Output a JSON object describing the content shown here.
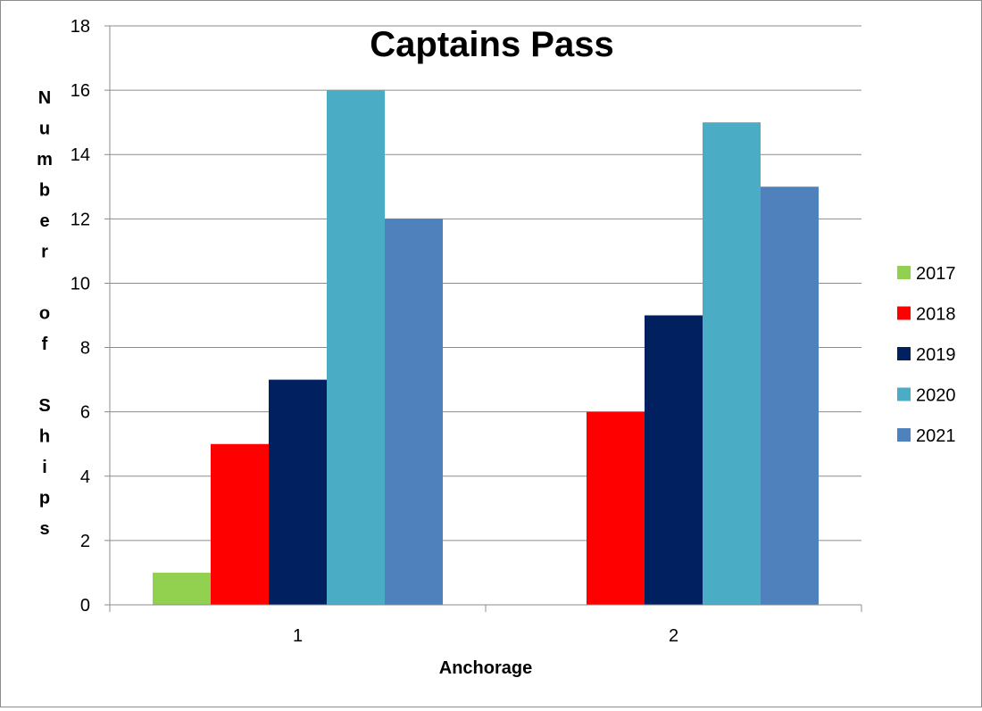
{
  "chart_data": {
    "type": "bar",
    "title": "Captains Pass",
    "xlabel": "Anchorage",
    "ylabel": "Number of Ships",
    "categories": [
      "1",
      "2"
    ],
    "series": [
      {
        "name": "2017",
        "color": "#92d050",
        "values": [
          1,
          0
        ]
      },
      {
        "name": "2018",
        "color": "#ff0000",
        "values": [
          5,
          6
        ]
      },
      {
        "name": "2019",
        "color": "#002060",
        "values": [
          7,
          9
        ]
      },
      {
        "name": "2020",
        "color": "#4bacc6",
        "values": [
          16,
          15
        ]
      },
      {
        "name": "2021",
        "color": "#4f81bd",
        "values": [
          12,
          13
        ]
      }
    ],
    "ylim": [
      0,
      18
    ],
    "yticks": [
      0,
      2,
      4,
      6,
      8,
      10,
      12,
      14,
      16,
      18
    ],
    "grid": true,
    "legend_position": "right"
  }
}
